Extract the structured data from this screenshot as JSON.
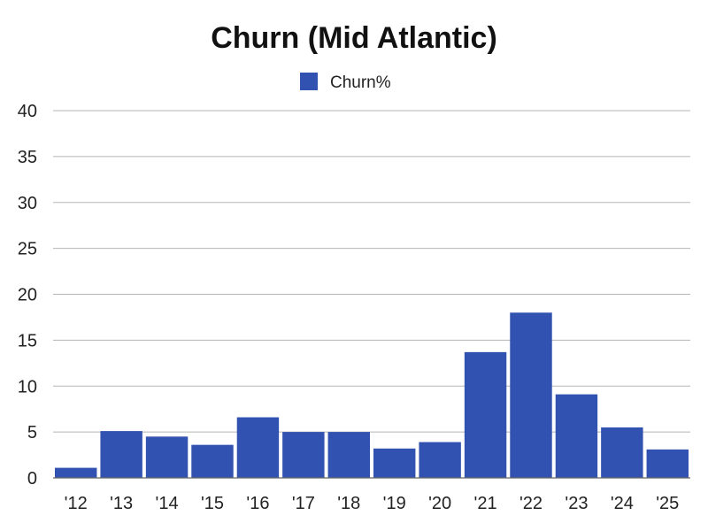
{
  "chart_data": {
    "type": "bar",
    "title": "Churn (Mid Atlantic)",
    "xlabel": "",
    "ylabel": "",
    "categories": [
      "'12",
      "'13",
      "'14",
      "'15",
      "'16",
      "'17",
      "'18",
      "'19",
      "'20",
      "'21",
      "'22",
      "'23",
      "'24",
      "'25"
    ],
    "series": [
      {
        "name": "Churn%",
        "color": "#3152b0",
        "values": [
          1.1,
          5.1,
          4.5,
          3.6,
          6.6,
          5.0,
          5.0,
          3.2,
          3.9,
          13.7,
          18.0,
          9.1,
          5.5,
          3.1
        ]
      }
    ],
    "ylim": [
      0,
      40
    ],
    "yticks": [
      0,
      5,
      10,
      15,
      20,
      25,
      30,
      35,
      40
    ],
    "grid": true,
    "legend": "top-center"
  }
}
